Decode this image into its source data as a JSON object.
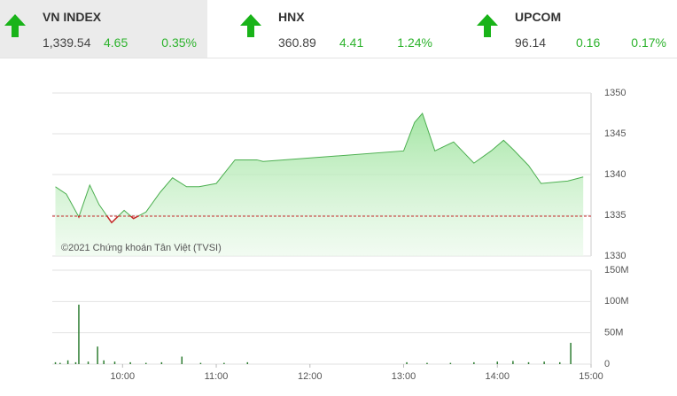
{
  "indices": [
    {
      "name": "VN INDEX",
      "value": "1,339.54",
      "change": "4.65",
      "percent": "0.35%"
    },
    {
      "name": "HNX",
      "value": "360.89",
      "change": "4.41",
      "percent": "1.24%"
    },
    {
      "name": "UPCOM",
      "value": "96.14",
      "change": "0.16",
      "percent": "0.17%"
    }
  ],
  "chart_data": [
    {
      "type": "area",
      "watermark": "©2021 Chứng khoán Tân Việt (TVSI)",
      "color": "#4caf50",
      "reference": 1334.89,
      "reference_color": "#c62828",
      "x": [
        "09:17",
        "09:24",
        "09:32",
        "09:39",
        "09:45",
        "09:53",
        "10:01",
        "10:07",
        "10:15",
        "10:24",
        "10:32",
        "10:41",
        "10:49",
        "11:00",
        "11:12",
        "11:26",
        "11:30",
        "13:00",
        "13:07",
        "13:12",
        "13:20",
        "13:32",
        "13:45",
        "13:56",
        "14:04",
        "14:10",
        "14:20",
        "14:28",
        "14:45",
        "14:55"
      ],
      "values": [
        1338.5,
        1337.6,
        1334.8,
        1338.7,
        1336.3,
        1334.1,
        1335.6,
        1334.6,
        1335.4,
        1337.8,
        1339.6,
        1338.5,
        1338.5,
        1338.9,
        1341.8,
        1341.8,
        1341.6,
        1342.9,
        1346.4,
        1347.5,
        1342.9,
        1344.0,
        1341.4,
        1342.9,
        1344.2,
        1343.1,
        1341.1,
        1338.9,
        1339.2,
        1339.7
      ],
      "xlim": [
        "09:15",
        "15:00"
      ],
      "ylim": [
        1330,
        1350
      ],
      "yticks": [
        1330,
        1335,
        1340,
        1345,
        1350
      ]
    },
    {
      "type": "bar",
      "color": "#2e7d32",
      "x": [
        "09:17",
        "09:20",
        "09:25",
        "09:30",
        "09:32",
        "09:38",
        "09:44",
        "09:48",
        "09:55",
        "10:05",
        "10:15",
        "10:25",
        "10:38",
        "10:50",
        "11:05",
        "11:20",
        "13:02",
        "13:15",
        "13:30",
        "13:45",
        "14:00",
        "14:10",
        "14:20",
        "14:30",
        "14:40",
        "14:47"
      ],
      "values": [
        3000000,
        2000000,
        6000000,
        3000000,
        95000000,
        4000000,
        28000000,
        6000000,
        4000000,
        3000000,
        2000000,
        3000000,
        12000000,
        2000000,
        2000000,
        3000000,
        3000000,
        2000000,
        2000000,
        3000000,
        4000000,
        5000000,
        3000000,
        4000000,
        3000000,
        34000000
      ],
      "xlim": [
        "09:15",
        "15:00"
      ],
      "ylim": [
        0,
        150000000
      ],
      "yticks": [
        {
          "value": 0,
          "label": "0"
        },
        {
          "value": 50000000,
          "label": "50M"
        },
        {
          "value": 100000000,
          "label": "100M"
        },
        {
          "value": 150000000,
          "label": "150M"
        }
      ],
      "xticks": [
        "10:00",
        "11:00",
        "12:00",
        "13:00",
        "14:00",
        "15:00"
      ]
    }
  ]
}
